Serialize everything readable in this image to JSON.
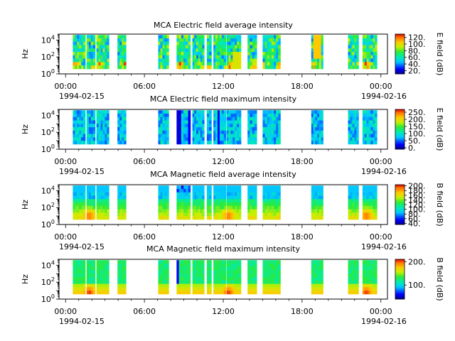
{
  "chart_data": [
    {
      "type": "heatmap",
      "title": "MCA  Electric field average intensity",
      "ylabel": "Hz",
      "ytick_labels": [
        {
          "base": "10",
          "exp": "0"
        },
        {
          "base": "10",
          "exp": "2"
        },
        {
          "base": "10",
          "exp": "4"
        }
      ],
      "ylim_log10": [
        0,
        4.7
      ],
      "xtick_labels": [
        "00:00",
        "06:00",
        "12:00",
        "18:00",
        "00:00"
      ],
      "x_date_start": "1994-02-15",
      "x_date_end": "1994-02-16",
      "colorbar_label": "E field (dB)",
      "colorbar_ticks": [
        "20.",
        "40.",
        "60.",
        "80.",
        "100.",
        "120."
      ],
      "colorbar_range": [
        10,
        130
      ],
      "pattern": "e_avg"
    },
    {
      "type": "heatmap",
      "title": "MCA  Electric field maximum intensity",
      "ylabel": "Hz",
      "ytick_labels": [
        {
          "base": "10",
          "exp": "0"
        },
        {
          "base": "10",
          "exp": "2"
        },
        {
          "base": "10",
          "exp": "4"
        }
      ],
      "ylim_log10": [
        0,
        4.7
      ],
      "xtick_labels": [
        "00:00",
        "06:00",
        "12:00",
        "18:00",
        "00:00"
      ],
      "x_date_start": "1994-02-15",
      "x_date_end": "1994-02-16",
      "colorbar_label": "E field (dB)",
      "colorbar_ticks": [
        "0.",
        "50.",
        "100.",
        "150.",
        "200.",
        "250."
      ],
      "colorbar_range": [
        -10,
        270
      ],
      "pattern": "e_max"
    },
    {
      "type": "heatmap",
      "title": "MCA  Magnetic field average intensity",
      "ylabel": "Hz",
      "ytick_labels": [
        {
          "base": "10",
          "exp": "0"
        },
        {
          "base": "10",
          "exp": "2"
        },
        {
          "base": "10",
          "exp": "4"
        }
      ],
      "ylim_log10": [
        0,
        4.7
      ],
      "xtick_labels": [
        "00:00",
        "06:00",
        "12:00",
        "18:00",
        "00:00"
      ],
      "x_date_start": "1994-02-15",
      "x_date_end": "1994-02-16",
      "colorbar_label": "B field (dB)",
      "colorbar_ticks": [
        "40.",
        "60.",
        "80.",
        "100.",
        "120.",
        "140.",
        "160.",
        "180.",
        "200."
      ],
      "colorbar_range": [
        35,
        205
      ],
      "pattern": "b_avg"
    },
    {
      "type": "heatmap",
      "title": "MCA  Magnetic field maximum intensity",
      "ylabel": "Hz",
      "ytick_labels": [
        {
          "base": "10",
          "exp": "0"
        },
        {
          "base": "10",
          "exp": "2"
        },
        {
          "base": "10",
          "exp": "4"
        }
      ],
      "ylim_log10": [
        0,
        4.7
      ],
      "xtick_labels": [
        "00:00",
        "06:00",
        "12:00",
        "18:00",
        "00:00"
      ],
      "x_date_start": "1994-02-15",
      "x_date_end": "1994-02-16",
      "colorbar_label": "B field (dB)",
      "colorbar_ticks": [
        "100.",
        "200."
      ],
      "colorbar_range": [
        40,
        210
      ],
      "pattern": "b_max"
    }
  ],
  "data_intervals_hours": [
    [
      0.55,
      1.5
    ],
    [
      1.6,
      2.25
    ],
    [
      2.35,
      3.3
    ],
    [
      3.95,
      4.6
    ],
    [
      7.05,
      7.85
    ],
    [
      8.45,
      9.5
    ],
    [
      9.65,
      10.55
    ],
    [
      10.75,
      11.1
    ],
    [
      11.25,
      12.2
    ],
    [
      12.25,
      13.35
    ],
    [
      13.85,
      14.55
    ],
    [
      15.0,
      16.35
    ],
    [
      18.7,
      19.6
    ],
    [
      21.5,
      22.3
    ],
    [
      22.6,
      23.7
    ]
  ],
  "x_range_hours": [
    -0.5,
    24.5
  ]
}
